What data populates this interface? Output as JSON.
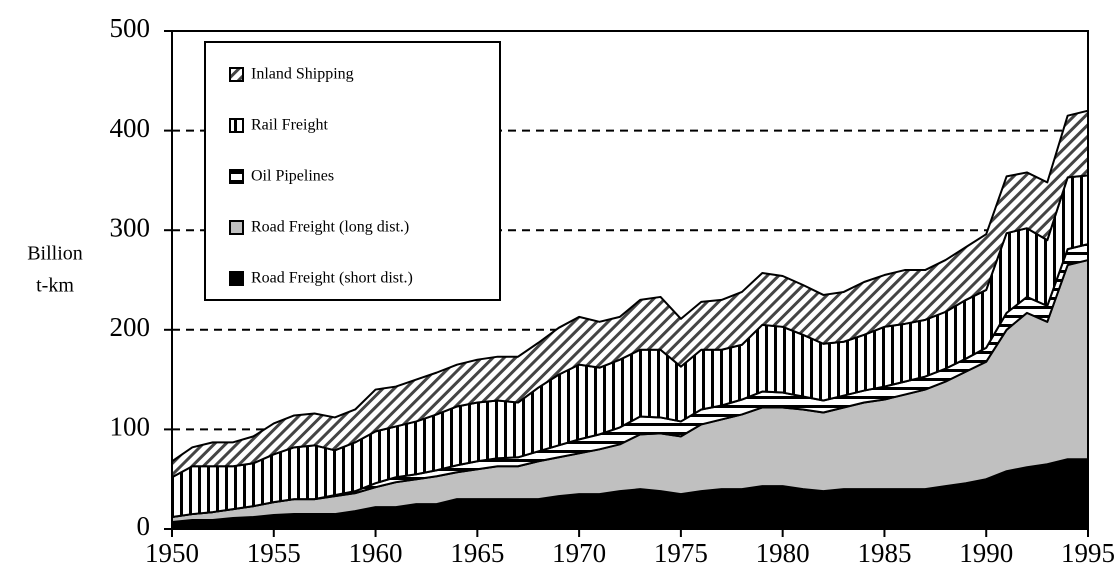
{
  "chart_data": {
    "type": "stacked_area",
    "y_label": [
      "Billion",
      "t-km"
    ],
    "x": [
      1950,
      1951,
      1952,
      1953,
      1954,
      1955,
      1956,
      1957,
      1958,
      1959,
      1960,
      1961,
      1962,
      1963,
      1964,
      1965,
      1966,
      1967,
      1968,
      1969,
      1970,
      1971,
      1972,
      1973,
      1974,
      1975,
      1976,
      1977,
      1978,
      1979,
      1980,
      1981,
      1982,
      1983,
      1984,
      1985,
      1986,
      1987,
      1988,
      1989,
      1990,
      1991,
      1992,
      1993,
      1994,
      1995
    ],
    "xlim": [
      1950,
      1995
    ],
    "xticks": [
      1950,
      1955,
      1960,
      1965,
      1970,
      1975,
      1980,
      1985,
      1990,
      1995
    ],
    "ylim": [
      0,
      500
    ],
    "yticks": [
      0,
      100,
      200,
      300,
      400,
      500
    ],
    "grid": true,
    "legend": "upper left",
    "series": [
      {
        "name": "Road Freight (short dist.)",
        "color": "#000000",
        "pattern": "solid",
        "values": [
          7,
          9,
          9,
          11,
          12,
          14,
          15,
          15,
          15,
          18,
          22,
          22,
          25,
          25,
          30,
          30,
          30,
          30,
          30,
          33,
          35,
          35,
          38,
          40,
          38,
          35,
          38,
          40,
          40,
          43,
          43,
          40,
          38,
          40,
          40,
          40,
          40,
          40,
          43,
          46,
          50,
          58,
          62,
          65,
          70,
          70
        ]
      },
      {
        "name": "Road Freight (long dist.)",
        "color": "#c0c0c0",
        "pattern": "solid",
        "values": [
          5,
          6,
          8,
          9,
          11,
          13,
          15,
          15,
          18,
          18,
          20,
          25,
          25,
          28,
          27,
          30,
          33,
          33,
          38,
          39,
          41,
          45,
          47,
          55,
          58,
          58,
          67,
          70,
          75,
          79,
          79,
          80,
          79,
          82,
          87,
          90,
          95,
          100,
          105,
          112,
          118,
          142,
          155,
          143,
          195,
          200
        ]
      },
      {
        "name": "Oil Pipelines",
        "color": "#000000",
        "pattern": "horizontal",
        "values": [
          0,
          0,
          0,
          0,
          0,
          0,
          0,
          0,
          1,
          2,
          4,
          5,
          5,
          6,
          7,
          8,
          8,
          9,
          10,
          12,
          14,
          15,
          17,
          18,
          16,
          15,
          15,
          14,
          15,
          16,
          15,
          13,
          12,
          12,
          12,
          13,
          13,
          13,
          13,
          13,
          14,
          17,
          16,
          16,
          16,
          16
        ]
      },
      {
        "name": "Rail Freight",
        "color": "#000000",
        "pattern": "vertical",
        "values": [
          40,
          48,
          46,
          43,
          43,
          48,
          52,
          54,
          45,
          49,
          52,
          51,
          53,
          56,
          59,
          59,
          58,
          55,
          64,
          71,
          75,
          67,
          68,
          67,
          68,
          55,
          60,
          56,
          55,
          67,
          66,
          62,
          57,
          54,
          56,
          60,
          58,
          57,
          57,
          59,
          58,
          80,
          69,
          66,
          72,
          69
        ]
      },
      {
        "name": "Inland Shipping",
        "color": "#000000",
        "pattern": "diagonal",
        "values": [
          16,
          19,
          24,
          24,
          27,
          31,
          32,
          32,
          33,
          33,
          42,
          40,
          42,
          42,
          42,
          43,
          44,
          46,
          45,
          47,
          48,
          46,
          43,
          50,
          53,
          48,
          48,
          50,
          53,
          52,
          51,
          50,
          49,
          50,
          53,
          52,
          54,
          50,
          52,
          53,
          56,
          57,
          56,
          58,
          62,
          65
        ]
      }
    ]
  }
}
